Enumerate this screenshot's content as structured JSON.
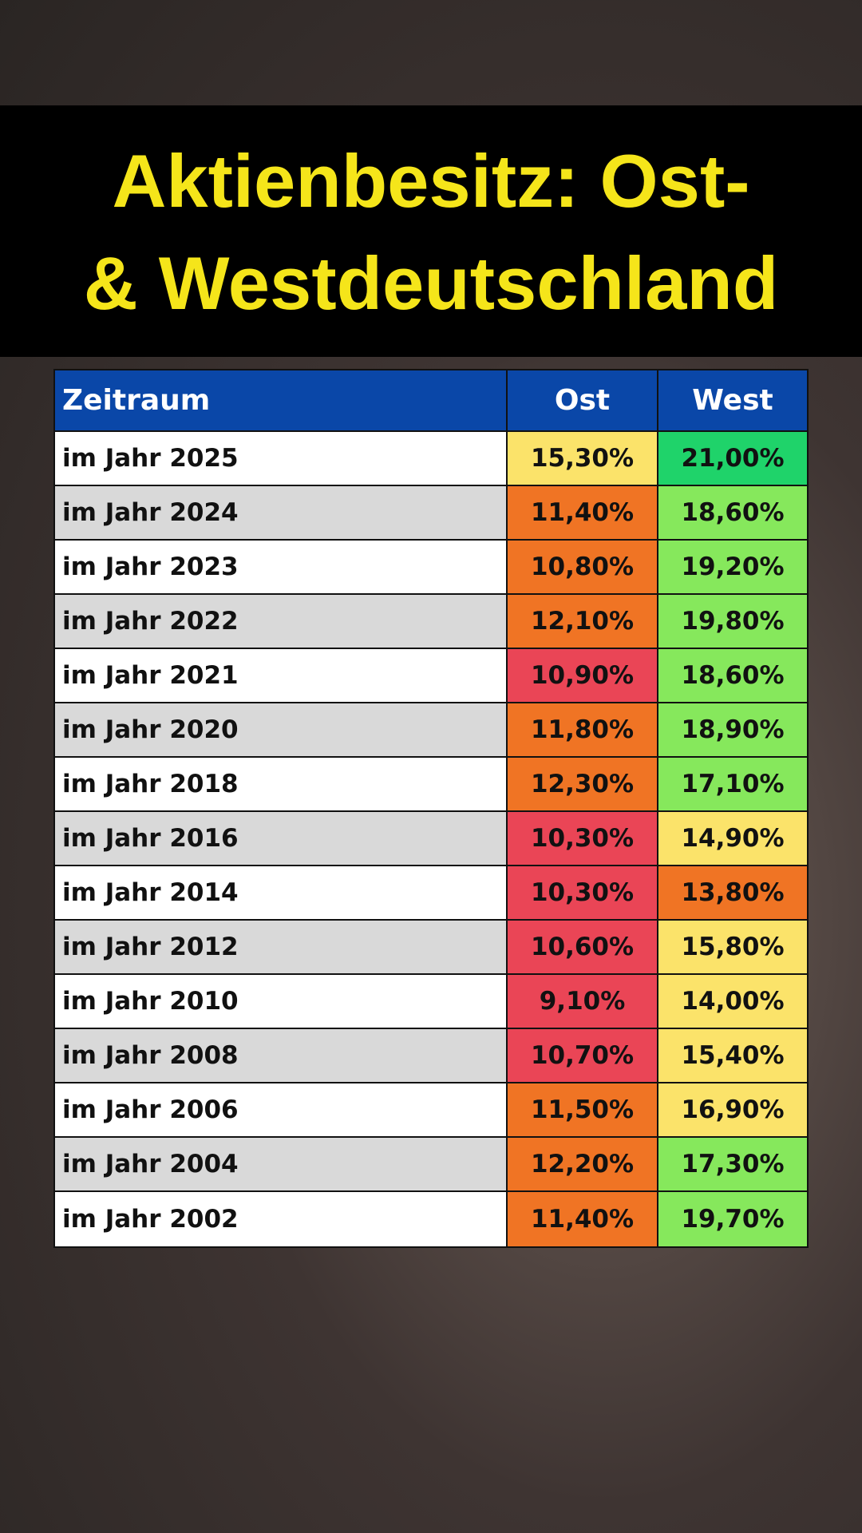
{
  "title": {
    "lines": [
      "Aktienbesitz: Ost-",
      "& Westdeutschland"
    ]
  },
  "table": {
    "header": [
      "Zeitraum",
      "Ost",
      "West"
    ],
    "header_color": "#0a47a8",
    "rows": [
      [
        "im Jahr 2025",
        "15,30%",
        "21,00%"
      ],
      [
        "im Jahr 2024",
        "11,40%",
        "18,60%"
      ],
      [
        "im Jahr 2023",
        "10,80%",
        "19,20%"
      ],
      [
        "im Jahr 2022",
        "12,10%",
        "19,80%"
      ],
      [
        "im Jahr 2021",
        "10,90%",
        "18,60%"
      ],
      [
        "im Jahr 2020",
        "11,80%",
        "18,90%"
      ],
      [
        "im Jahr 2018",
        "12,30%",
        "17,10%"
      ],
      [
        "im Jahr 2016",
        "10,30%",
        "14,90%"
      ],
      [
        "im Jahr 2014",
        "10,30%",
        "13,80%"
      ],
      [
        "im Jahr 2012",
        "10,60%",
        "15,80%"
      ],
      [
        "im Jahr 2010",
        "9,10%",
        "14,00%"
      ],
      [
        "im Jahr 2008",
        "10,70%",
        "15,40%"
      ],
      [
        "im Jahr 2006",
        "11,50%",
        "16,90%"
      ],
      [
        "im Jahr 2004",
        "12,20%",
        "17,30%"
      ],
      [
        "im Jahr 2002",
        "11,40%",
        "19,70%"
      ]
    ],
    "cell_colors": [
      [
        "#fbe36a",
        "#1fd36a"
      ],
      [
        "#f07424",
        "#86e85c"
      ],
      [
        "#f07424",
        "#86e85c"
      ],
      [
        "#f07424",
        "#86e85c"
      ],
      [
        "#ea4556",
        "#86e85c"
      ],
      [
        "#f07424",
        "#86e85c"
      ],
      [
        "#f07424",
        "#86e85c"
      ],
      [
        "#ea4556",
        "#fbe36a"
      ],
      [
        "#ea4556",
        "#f07424"
      ],
      [
        "#ea4556",
        "#fbe36a"
      ],
      [
        "#ea4556",
        "#fbe36a"
      ],
      [
        "#ea4556",
        "#fbe36a"
      ],
      [
        "#f07424",
        "#fbe36a"
      ],
      [
        "#f07424",
        "#86e85c"
      ],
      [
        "#f07424",
        "#86e85c"
      ]
    ]
  }
}
